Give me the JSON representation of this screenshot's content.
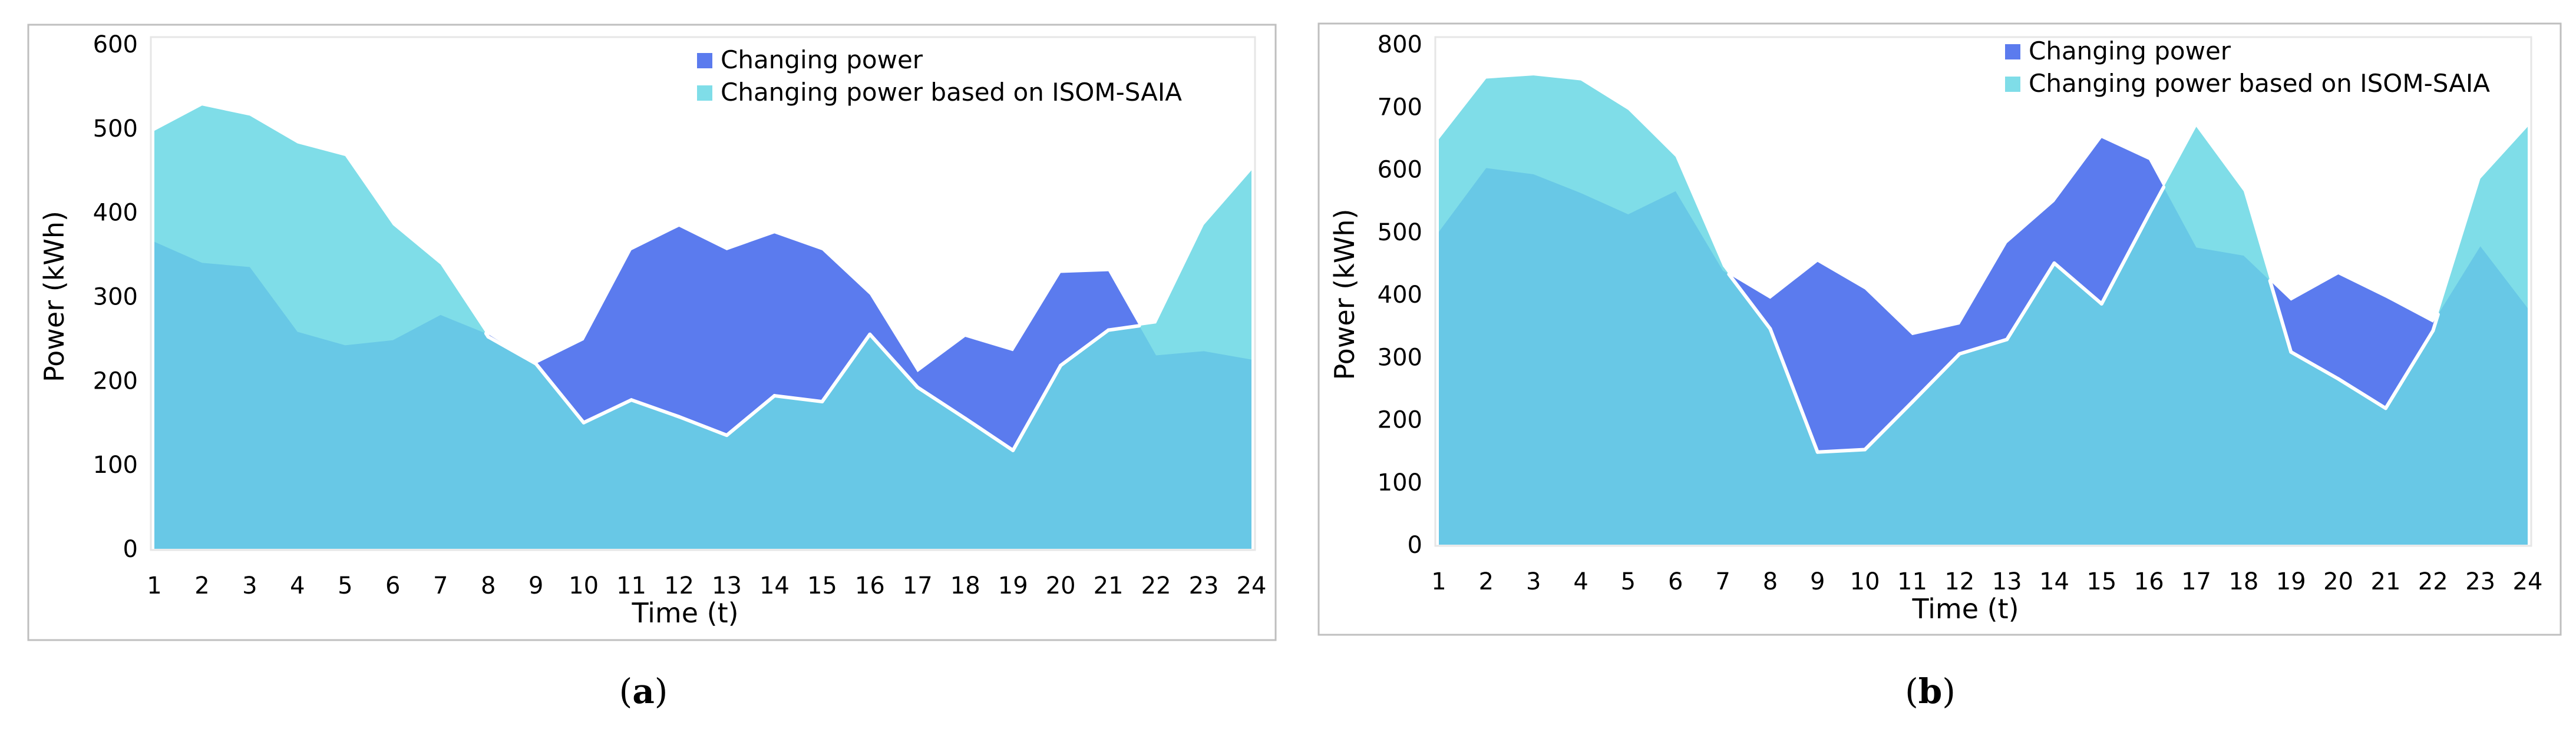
{
  "colors": {
    "changing": "#5B7BEE",
    "isom": "#7FDDE8",
    "overlap": "#68C8E6",
    "white_line": "#ffffff"
  },
  "captions": [
    "a",
    "b"
  ],
  "chart_data": [
    {
      "type": "area",
      "xlabel": "Time (t)",
      "ylabel": "Power (kWh)",
      "x": [
        1,
        2,
        3,
        4,
        5,
        6,
        7,
        8,
        9,
        10,
        11,
        12,
        13,
        14,
        15,
        16,
        17,
        18,
        19,
        20,
        21,
        22,
        23,
        24
      ],
      "xticks": [
        "1",
        "2",
        "3",
        "4",
        "5",
        "6",
        "7",
        "8",
        "9",
        "10",
        "11",
        "12",
        "13",
        "14",
        "15",
        "16",
        "17",
        "18",
        "19",
        "20",
        "21",
        "22",
        "23",
        "24"
      ],
      "ylim": [
        0,
        600
      ],
      "yticks": [
        "0",
        "100",
        "200",
        "300",
        "400",
        "500",
        "600"
      ],
      "legend": {
        "position": "top-right",
        "labels": [
          "Changing power",
          "Changing power based on ISOM-SAIA"
        ]
      },
      "series": [
        {
          "name": "Changing power",
          "values": [
            365,
            340,
            335,
            258,
            242,
            248,
            278,
            255,
            220,
            248,
            355,
            383,
            355,
            375,
            355,
            302,
            210,
            252,
            235,
            328,
            330,
            230,
            235,
            225
          ]
        },
        {
          "name": "Changing power based on ISOM-SAIA",
          "values": [
            497,
            527,
            515,
            482,
            467,
            385,
            338,
            252,
            220,
            150,
            177,
            157,
            135,
            182,
            175,
            255,
            192,
            155,
            117,
            218,
            260,
            268,
            385,
            450
          ]
        }
      ]
    },
    {
      "type": "area",
      "xlabel": "Time (t)",
      "ylabel": "Power (kWh)",
      "x": [
        1,
        2,
        3,
        4,
        5,
        6,
        7,
        8,
        9,
        10,
        11,
        12,
        13,
        14,
        15,
        16,
        17,
        18,
        19,
        20,
        21,
        22,
        23,
        24
      ],
      "xticks": [
        "1",
        "2",
        "3",
        "4",
        "5",
        "6",
        "7",
        "8",
        "9",
        "10",
        "11",
        "12",
        "13",
        "14",
        "15",
        "16",
        "17",
        "18",
        "19",
        "20",
        "21",
        "22",
        "23",
        "24"
      ],
      "ylim": [
        0,
        800
      ],
      "yticks": [
        "0",
        "100",
        "200",
        "300",
        "400",
        "500",
        "600",
        "700",
        "800"
      ],
      "legend": {
        "position": "top-right",
        "labels": [
          "Changing power",
          "Changing power based on ISOM-SAIA"
        ]
      },
      "series": [
        {
          "name": "Changing power",
          "values": [
            500,
            602,
            592,
            562,
            528,
            565,
            438,
            393,
            452,
            408,
            335,
            352,
            482,
            548,
            650,
            615,
            475,
            462,
            390,
            432,
            395,
            355,
            477,
            378
          ]
        },
        {
          "name": "Changing power based on ISOM-SAIA",
          "values": [
            648,
            745,
            750,
            742,
            695,
            620,
            445,
            345,
            148,
            152,
            228,
            305,
            328,
            450,
            385,
            528,
            668,
            565,
            308,
            265,
            218,
            342,
            585,
            668
          ]
        }
      ]
    }
  ]
}
